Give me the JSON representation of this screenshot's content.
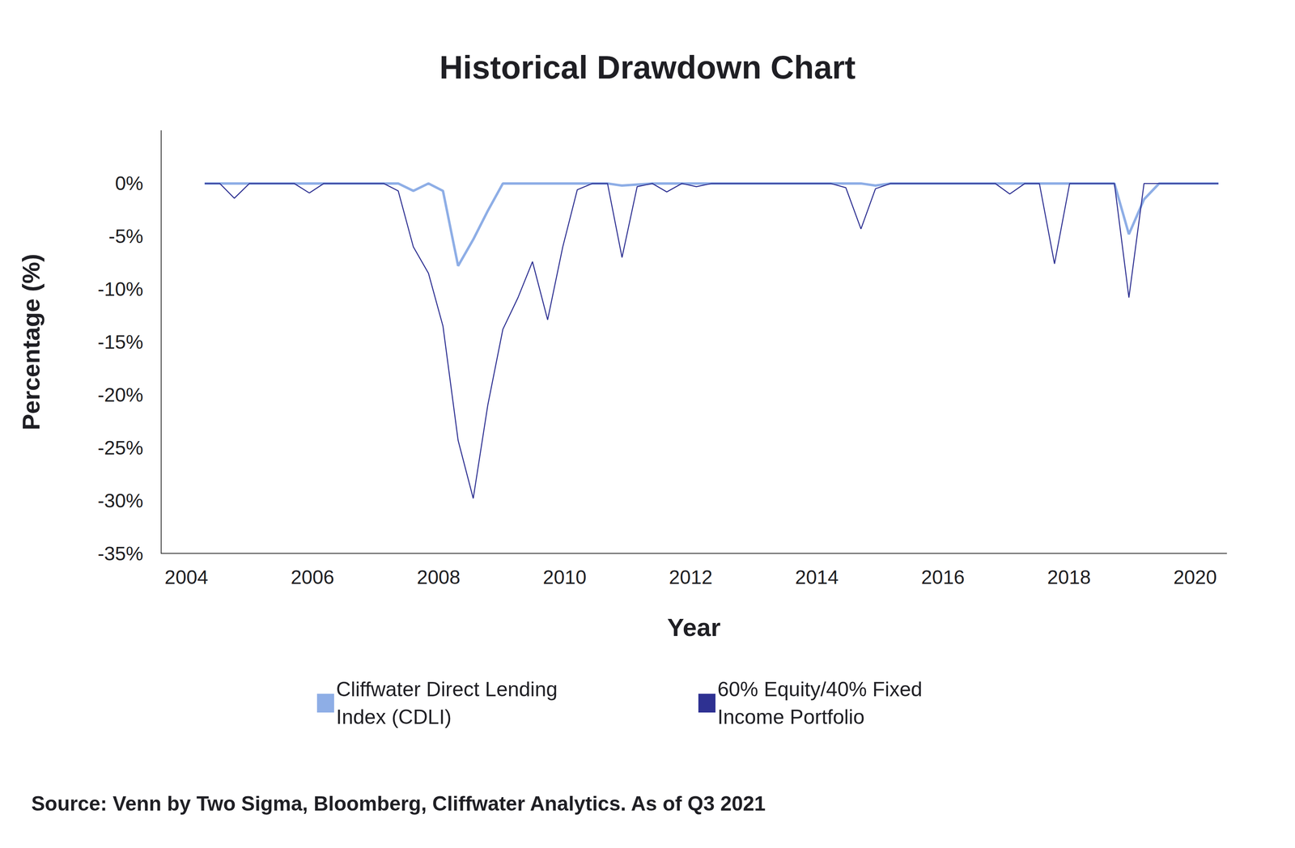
{
  "chart_data": {
    "type": "line",
    "title": "Historical Drawdown Chart",
    "xlabel": "Year",
    "ylabel": "Percentage (%)",
    "source": "Source: Venn by Two Sigma, Bloomberg, Cliffwater Analytics. As of Q3 2021",
    "x": [
      2004.29,
      2004.53,
      2004.76,
      2005.0,
      2005.24,
      2005.47,
      2005.71,
      2005.95,
      2006.18,
      2006.42,
      2006.66,
      2006.89,
      2007.13,
      2007.36,
      2007.6,
      2007.84,
      2008.07,
      2008.31,
      2008.55,
      2008.78,
      2009.02,
      2009.26,
      2009.49,
      2009.73,
      2009.97,
      2010.2,
      2010.44,
      2010.68,
      2010.91,
      2011.15,
      2011.39,
      2011.62,
      2011.86,
      2012.09,
      2012.33,
      2012.57,
      2012.8,
      2013.04,
      2013.28,
      2013.51,
      2013.75,
      2013.99,
      2014.22,
      2014.46,
      2014.7,
      2014.93,
      2015.17,
      2015.41,
      2015.64,
      2015.88,
      2016.12,
      2016.35,
      2016.59,
      2016.83,
      2017.06,
      2017.3,
      2017.53,
      2017.77,
      2018.01,
      2018.24,
      2018.48,
      2018.72,
      2018.95,
      2019.19,
      2019.43,
      2019.66,
      2019.9,
      2020.14,
      2020.37
    ],
    "series": [
      {
        "name": "Cliffwater Direct Lending Index (CDLI)",
        "color": "#8eaee6",
        "values": [
          0,
          0,
          0,
          0,
          0,
          0,
          0,
          0,
          0,
          0,
          0,
          0,
          0,
          0,
          -0.7,
          0,
          -0.7,
          -7.8,
          -5.3,
          -2.6,
          0,
          0,
          0,
          0,
          0,
          0,
          0,
          0,
          -0.2,
          -0.1,
          0,
          0,
          0,
          0,
          0,
          0,
          0,
          0,
          0,
          0,
          0,
          0,
          0,
          0,
          0,
          -0.2,
          0,
          0,
          0,
          0,
          0,
          0,
          0,
          0,
          0,
          0,
          0,
          0,
          0,
          0,
          0,
          0,
          -4.8,
          -1.5,
          0,
          0,
          0,
          0,
          0
        ]
      },
      {
        "name": "60% Equity/40% Fixed Income Portfolio",
        "color": "#2e3192",
        "values": [
          0,
          0,
          -1.4,
          0,
          0,
          0,
          0,
          -0.9,
          0,
          0,
          0,
          0,
          0,
          -0.7,
          -6.0,
          -8.5,
          -13.5,
          -24.3,
          -29.8,
          -21.0,
          -13.8,
          -10.8,
          -7.4,
          -12.9,
          -6.0,
          -0.6,
          0,
          0,
          -7.0,
          -0.3,
          0,
          -0.8,
          0,
          -0.3,
          0,
          0,
          0,
          0,
          0,
          0,
          0,
          0,
          0,
          -0.4,
          -4.3,
          -0.5,
          0,
          0,
          0,
          0,
          0,
          0,
          0,
          0,
          -1.0,
          0,
          0,
          -7.6,
          0,
          0,
          0,
          0,
          -10.8,
          0,
          0,
          0,
          0,
          0,
          0
        ]
      }
    ],
    "xlim": [
      2003.6,
      2020.5
    ],
    "xticks": [
      2004,
      2006,
      2008,
      2010,
      2012,
      2014,
      2016,
      2018,
      2020
    ],
    "ylim": [
      -35,
      5
    ],
    "yticks": [
      {
        "value": -35,
        "label": "-35%"
      },
      {
        "value": -30,
        "label": "-30%"
      },
      {
        "value": -25,
        "label": "-25%"
      },
      {
        "value": -20,
        "label": "-20%"
      },
      {
        "value": -15,
        "label": "-15%"
      },
      {
        "value": -10,
        "label": "-10%"
      },
      {
        "value": -5,
        "label": "-5%"
      },
      {
        "value": 0,
        "label": "0%"
      }
    ],
    "grid": false,
    "legend": "bottom"
  }
}
